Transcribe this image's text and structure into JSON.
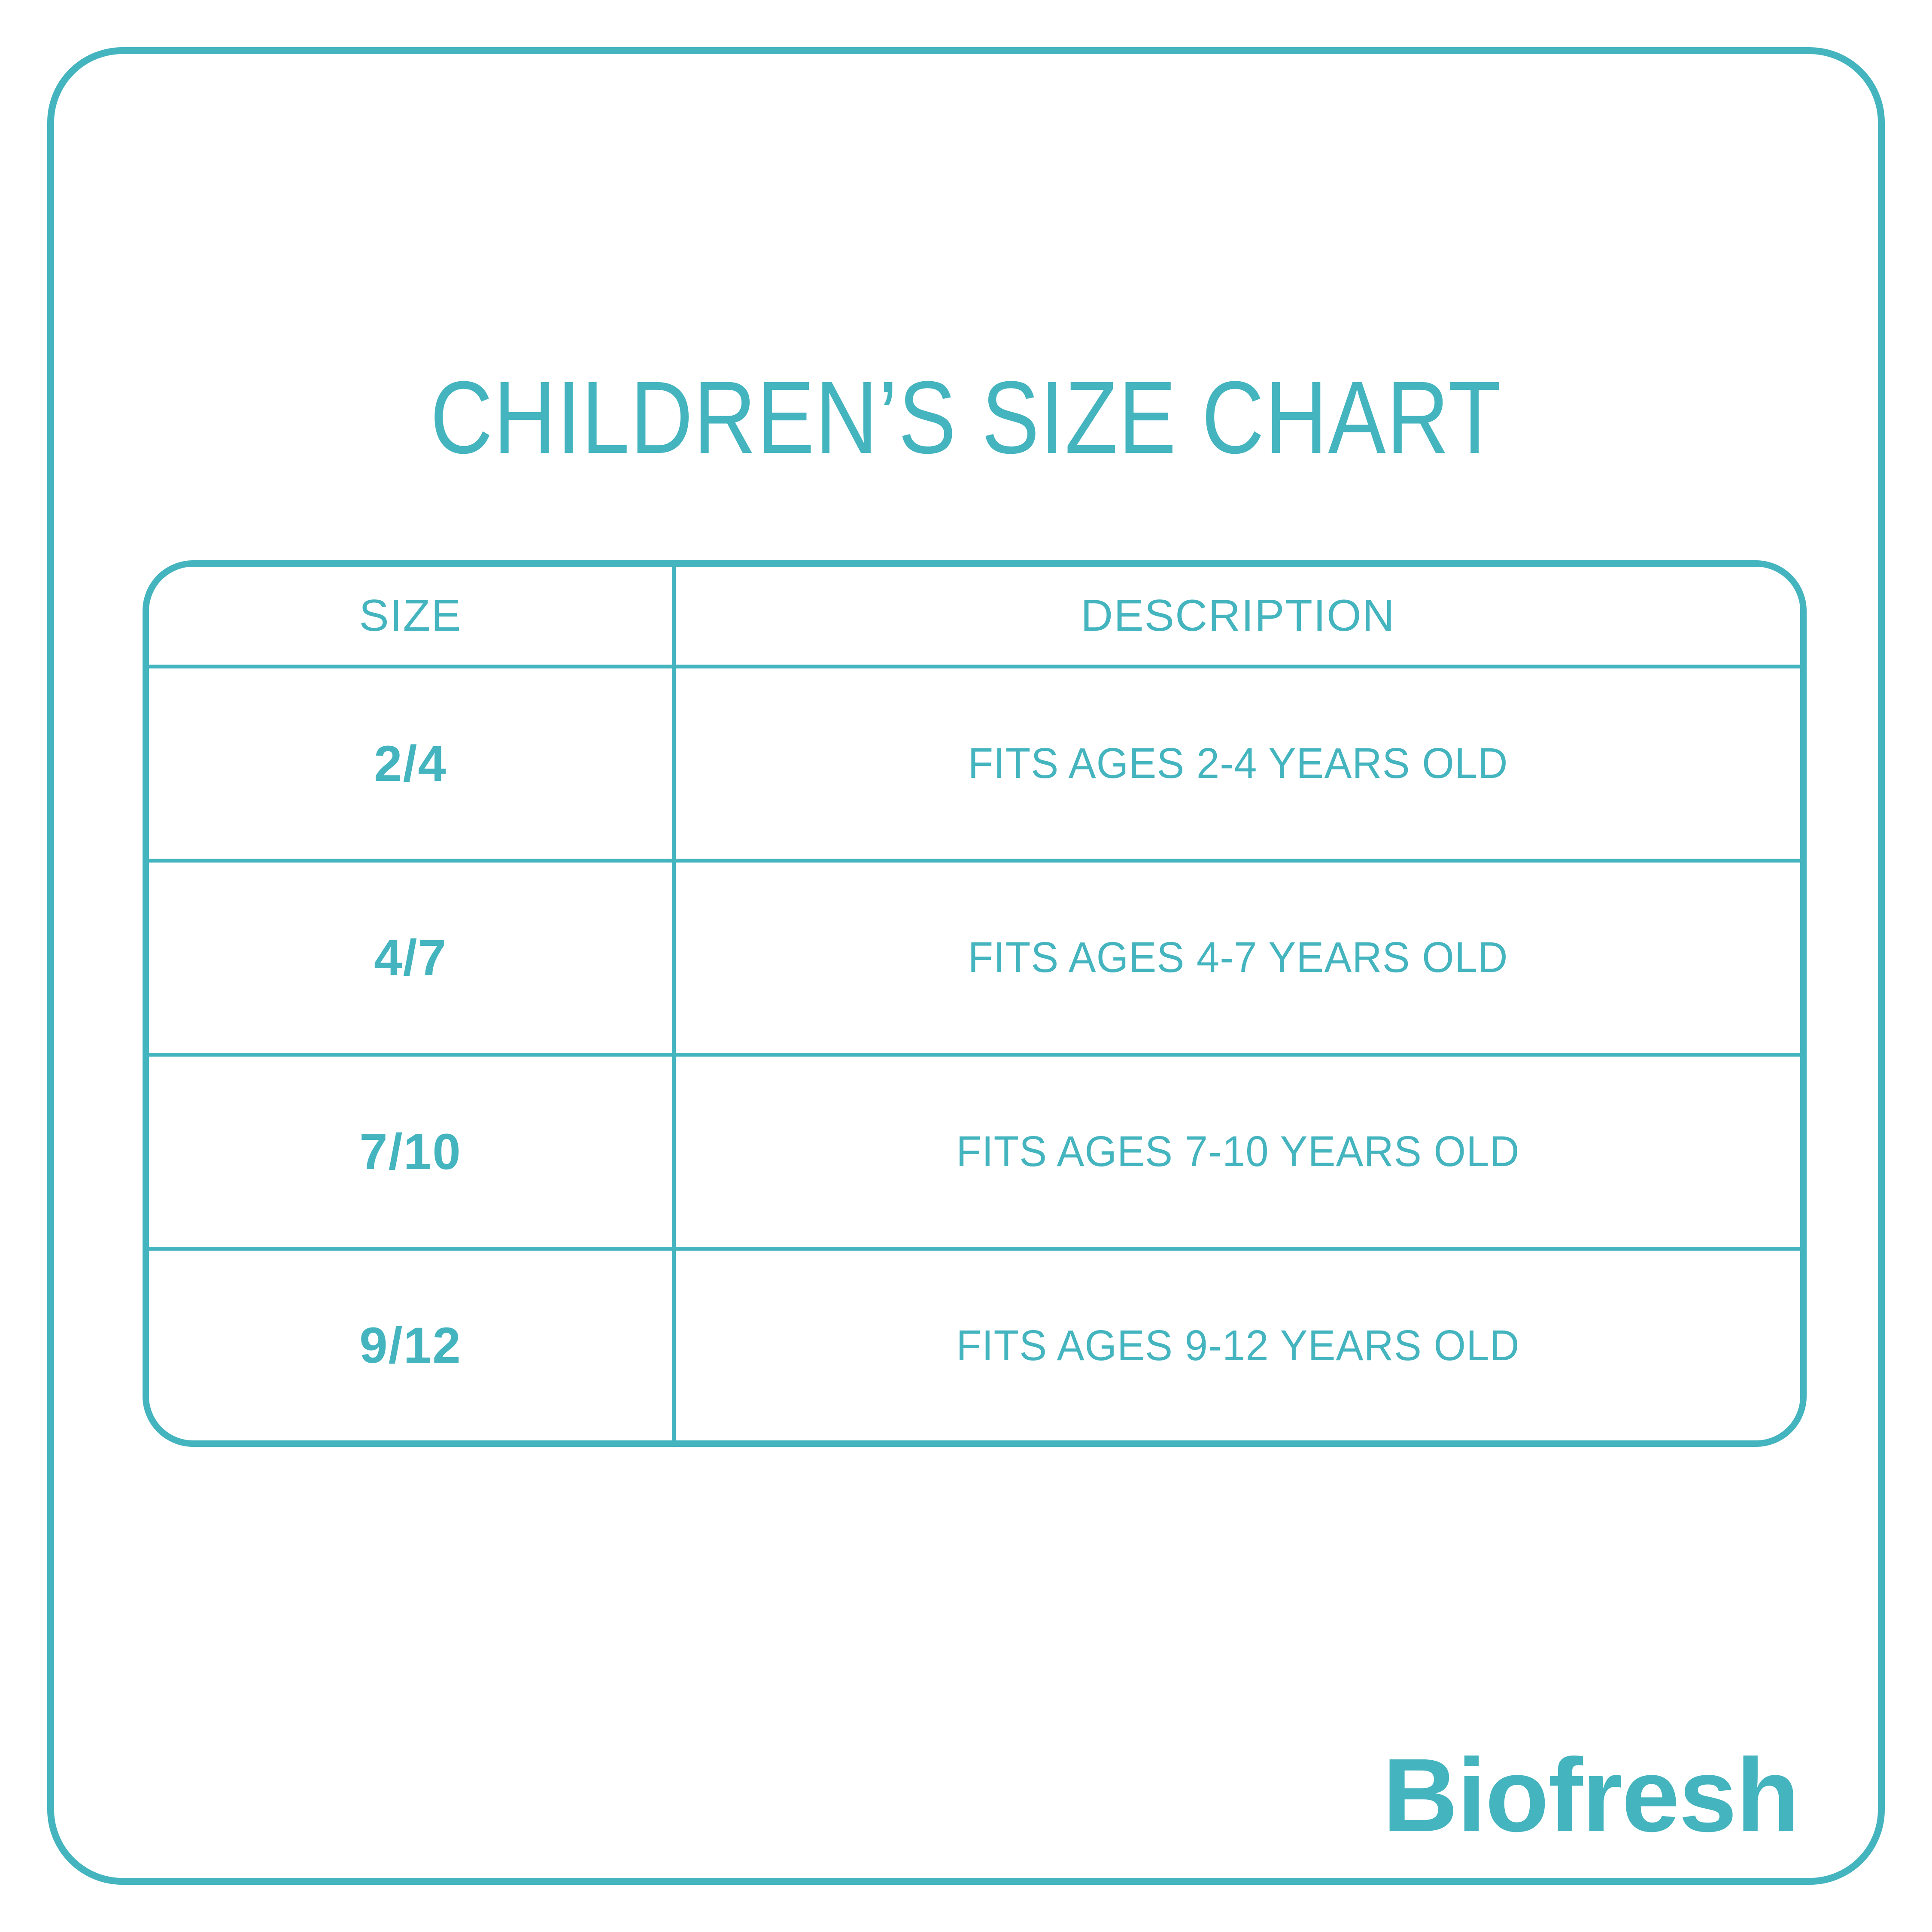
{
  "page": {
    "accent_color": "#44B4BF",
    "background_color": "#FFFFFF"
  },
  "title": {
    "text": "CHILDREN’S SIZE CHART"
  },
  "table": {
    "headers": {
      "size": "SIZE",
      "description": "DESCRIPTION"
    },
    "rows": [
      {
        "size": "2/4",
        "description": "FITS AGES 2-4 YEARS OLD"
      },
      {
        "size": "4/7",
        "description": "FITS AGES 4-7 YEARS OLD"
      },
      {
        "size": "7/10",
        "description": "FITS AGES 7-10 YEARS OLD"
      },
      {
        "size": "9/12",
        "description": "FITS AGES 9-12 YEARS OLD"
      }
    ]
  },
  "footer": {
    "brand": "Biofresh"
  }
}
